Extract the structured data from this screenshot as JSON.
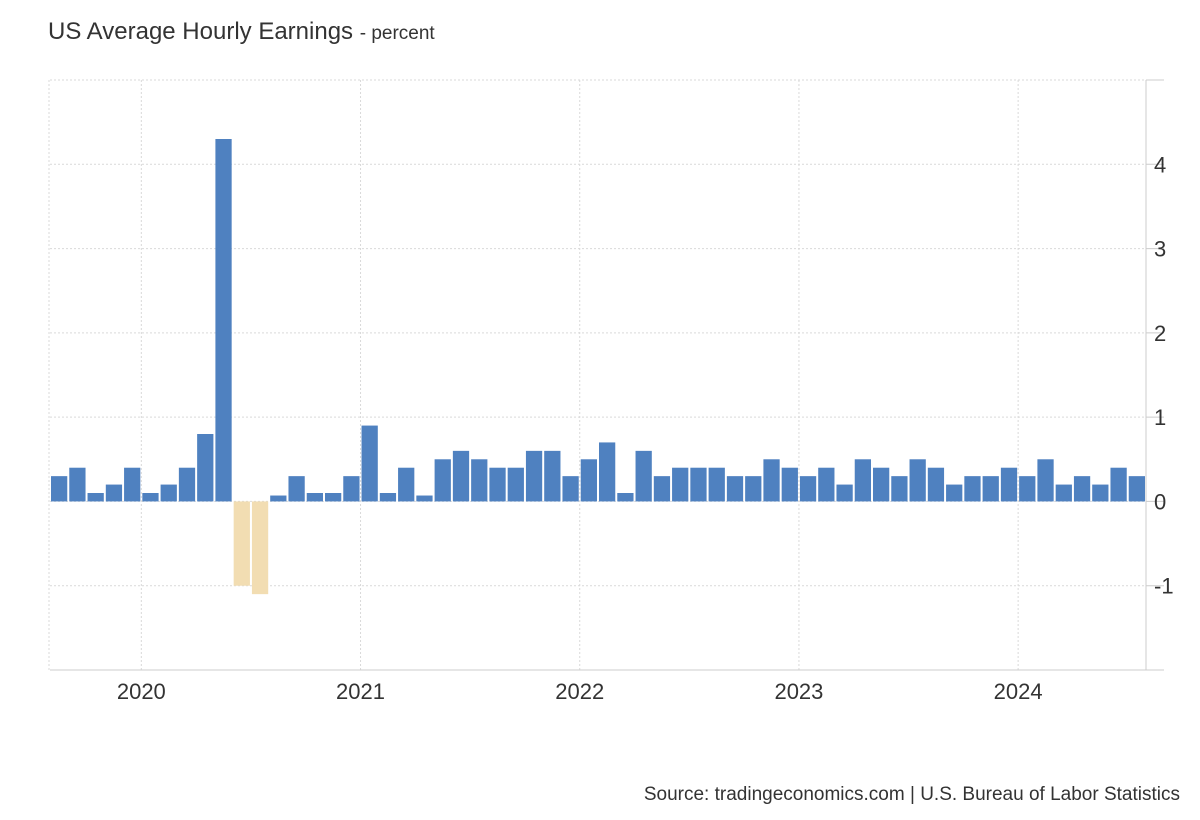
{
  "title": "US Average Hourly Earnings",
  "title_unit": "- percent",
  "source": "Source: tradingeconomics.com | U.S. Bureau of Labor Statistics",
  "chart_data": {
    "type": "bar",
    "title": "US Average Hourly Earnings",
    "subtitle": "- percent",
    "xlabel": "",
    "ylabel": "",
    "x_start": "2019-08",
    "x_end": "2024-07",
    "xticks": [
      "2020",
      "2021",
      "2022",
      "2023",
      "2024"
    ],
    "yticks": [
      -1,
      0,
      1,
      2,
      3,
      4
    ],
    "ylim": [
      -2,
      5
    ],
    "grid": true,
    "legend": "none",
    "colors": {
      "positive": "#4f81c0",
      "negative": "#f2ddb2"
    },
    "categories": [
      "2019-08",
      "2019-09",
      "2019-10",
      "2019-11",
      "2019-12",
      "2020-01",
      "2020-02",
      "2020-03",
      "2020-04",
      "2020-05",
      "2020-06",
      "2020-07",
      "2020-08",
      "2020-09",
      "2020-10",
      "2020-11",
      "2020-12",
      "2021-01",
      "2021-02",
      "2021-03",
      "2021-04",
      "2021-05",
      "2021-06",
      "2021-07",
      "2021-08",
      "2021-09",
      "2021-10",
      "2021-11",
      "2021-12",
      "2022-01",
      "2022-02",
      "2022-03",
      "2022-04",
      "2022-05",
      "2022-06",
      "2022-07",
      "2022-08",
      "2022-09",
      "2022-10",
      "2022-11",
      "2022-12",
      "2023-01",
      "2023-02",
      "2023-03",
      "2023-04",
      "2023-05",
      "2023-06",
      "2023-07",
      "2023-08",
      "2023-09",
      "2023-10",
      "2023-11",
      "2023-12",
      "2024-01",
      "2024-02",
      "2024-03",
      "2024-04",
      "2024-05",
      "2024-06",
      "2024-07"
    ],
    "values": [
      0.3,
      0.4,
      0.1,
      0.2,
      0.4,
      0.1,
      0.2,
      0.4,
      0.8,
      4.3,
      -1.0,
      -1.1,
      0.07,
      0.3,
      0.1,
      0.1,
      0.3,
      0.9,
      0.1,
      0.4,
      0.07,
      0.5,
      0.6,
      0.5,
      0.4,
      0.4,
      0.6,
      0.6,
      0.3,
      0.5,
      0.7,
      0.1,
      0.6,
      0.3,
      0.4,
      0.4,
      0.4,
      0.3,
      0.3,
      0.5,
      0.4,
      0.3,
      0.4,
      0.2,
      0.5,
      0.4,
      0.3,
      0.5,
      0.4,
      0.2,
      0.3,
      0.3,
      0.4,
      0.3,
      0.5,
      0.2,
      0.3,
      0.2,
      0.4,
      0.3
    ]
  }
}
